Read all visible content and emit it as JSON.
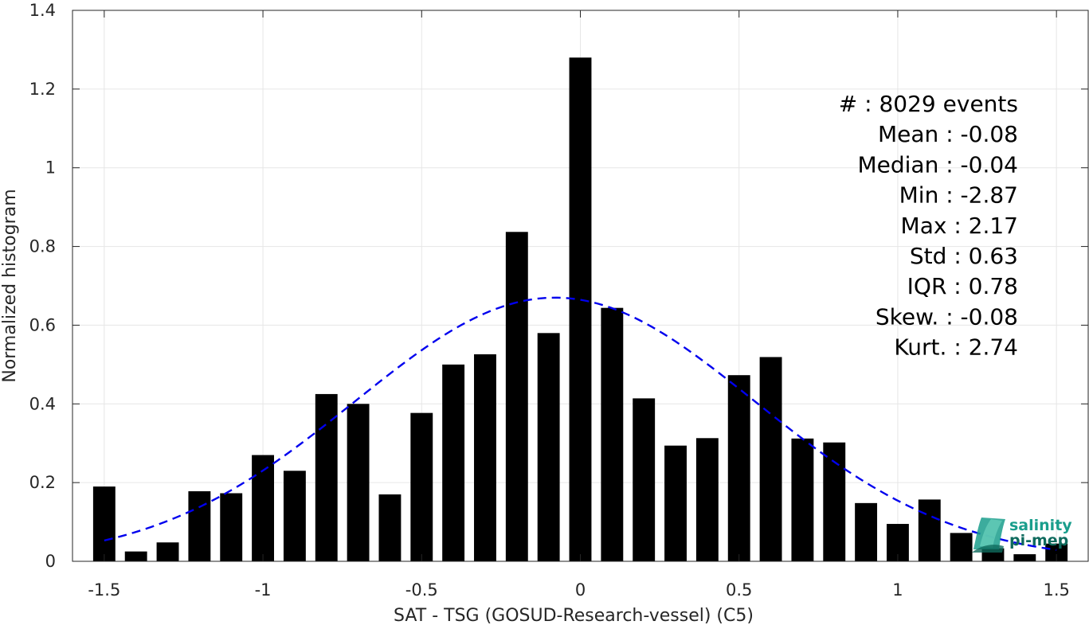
{
  "chart_data": {
    "type": "bar",
    "xlabel": "SAT - TSG (GOSUD-Research-vessel) (C5)",
    "ylabel": "Normalized histogram",
    "xlim": [
      -1.6,
      1.6
    ],
    "ylim": [
      0,
      1.4
    ],
    "grid": true,
    "x_ticks": [
      -1.5,
      -1,
      -0.5,
      0,
      0.5,
      1,
      1.5
    ],
    "x_tick_labels": [
      "-1.5",
      "-1",
      "-0.5",
      "0",
      "0.5",
      "1",
      "1.5"
    ],
    "y_ticks": [
      0,
      0.2,
      0.4,
      0.6,
      0.8,
      1,
      1.2,
      1.4
    ],
    "y_tick_labels": [
      "0",
      "0.2",
      "0.4",
      "0.6",
      "0.8",
      "1",
      "1.2",
      "1.4"
    ],
    "bar_width": 0.07,
    "bars": {
      "x": [
        -1.5,
        -1.4,
        -1.3,
        -1.2,
        -1.1,
        -1.0,
        -0.9,
        -0.8,
        -0.7,
        -0.6,
        -0.5,
        -0.4,
        -0.3,
        -0.2,
        -0.1,
        0.0,
        0.1,
        0.2,
        0.3,
        0.4,
        0.5,
        0.6,
        0.7,
        0.8,
        0.9,
        1.0,
        1.1,
        1.2,
        1.3,
        1.4,
        1.5
      ],
      "values": [
        0.19,
        0.025,
        0.048,
        0.178,
        0.173,
        0.27,
        0.23,
        0.425,
        0.4,
        0.17,
        0.377,
        0.5,
        0.526,
        0.837,
        0.58,
        1.28,
        0.644,
        0.414,
        0.294,
        0.313,
        0.473,
        0.519,
        0.312,
        0.302,
        0.148,
        0.095,
        0.157,
        0.072,
        0.033,
        0.018,
        0.045
      ]
    },
    "fit": {
      "type": "normal-curve",
      "style": "dashed",
      "color": "#0000ee",
      "mean": -0.08,
      "std": 0.63,
      "peak": 0.67,
      "x_range": [
        -1.5,
        1.5
      ]
    },
    "stats": [
      {
        "key": "#",
        "sep": "  : ",
        "value": "8029 events"
      },
      {
        "key": "Mean",
        "sep": " : ",
        "value": "-0.08"
      },
      {
        "key": "Median",
        "sep": " : ",
        "value": "-0.04"
      },
      {
        "key": "Min",
        "sep": " : ",
        "value": "-2.87"
      },
      {
        "key": "Max",
        "sep": " : ",
        "value": "2.17"
      },
      {
        "key": "Std",
        "sep": " : ",
        "value": "0.63"
      },
      {
        "key": "IQR",
        "sep": " : ",
        "value": "0.78"
      },
      {
        "key": "Skew.",
        "sep": " : ",
        "value": "-0.08"
      },
      {
        "key": "Kurt.",
        "sep": " : ",
        "value": "2.74"
      }
    ]
  },
  "logo": {
    "line1": "salinity",
    "line2": "pi-mep",
    "color_primary": "#1a9e8c",
    "color_secondary": "#0f6b5e"
  },
  "colors": {
    "bar": "#000000",
    "grid": "#e6e6e6",
    "axis": "#262626"
  }
}
